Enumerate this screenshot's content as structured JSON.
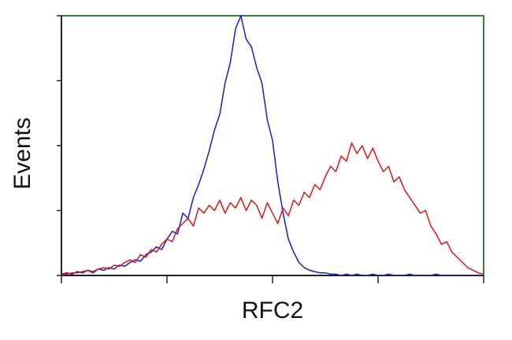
{
  "chart_data": {
    "type": "line",
    "xlabel": "RFC2",
    "ylabel": "Events",
    "x": [
      1,
      1.122,
      1.259,
      1.413,
      1.585,
      1.778,
      1.995,
      2.239,
      2.512,
      2.818,
      3.162,
      3.548,
      3.981,
      4.467,
      5.012,
      5.623,
      6.31,
      7.079,
      7.943,
      8.913,
      10,
      11.22,
      12.59,
      14.13,
      15.85,
      17.78,
      19.95,
      22.39,
      25.12,
      28.18,
      31.62,
      35.48,
      39.81,
      44.67,
      50.12,
      56.23,
      63.1,
      70.79,
      79.43,
      89.13,
      100,
      112.2,
      125.9,
      141.3,
      158.5,
      177.8,
      199.5,
      223.9,
      251.2,
      281.8,
      316.2,
      354.8,
      398.1,
      446.7,
      501.2,
      562.3,
      631,
      707.9,
      794.3,
      891.3,
      1000,
      1122,
      1259,
      1413,
      1585,
      1778,
      1995,
      2239,
      2512,
      2818,
      3162,
      3548,
      3981,
      4467,
      5012,
      5623,
      6310,
      7079,
      7943,
      8913,
      10000
    ],
    "series": [
      {
        "color": "#1a1ad6",
        "values": [
          0.5,
          1,
          0.5,
          1.5,
          1,
          2,
          1,
          2.5,
          2,
          3,
          2.5,
          4,
          3.5,
          5,
          6,
          5.5,
          8,
          9,
          11,
          10,
          14,
          17,
          16,
          24,
          22,
          30,
          35,
          41,
          48,
          56,
          62,
          74,
          82,
          95,
          100,
          91,
          88,
          80,
          74,
          60,
          52,
          36,
          24,
          14,
          9,
          5,
          3,
          2,
          1.5,
          1,
          1,
          0.5,
          0.5,
          0,
          0.5,
          0,
          0.5,
          0,
          0,
          0.5,
          0,
          0,
          0.5,
          0,
          0,
          0,
          0.5,
          0,
          0,
          0,
          0,
          0.5,
          0,
          0,
          0,
          0,
          0,
          0,
          0,
          0,
          0
        ]
      },
      {
        "color": "#e01515",
        "values": [
          0.5,
          0.5,
          1,
          1,
          1.5,
          2,
          1.5,
          2.5,
          3,
          2.5,
          4,
          3.5,
          5,
          6,
          5,
          8,
          7,
          10,
          9,
          12,
          14,
          13,
          18,
          20,
          22,
          19,
          26,
          24,
          27,
          25,
          29,
          24,
          28,
          26,
          30,
          25,
          29,
          27,
          22,
          28,
          24,
          20,
          26,
          23,
          29,
          27,
          32,
          30,
          35,
          33,
          38,
          42,
          40,
          46,
          44,
          51,
          47,
          50,
          45,
          49,
          44,
          40,
          42,
          36,
          38,
          33,
          30,
          27,
          24,
          25,
          19,
          16,
          12,
          13,
          9,
          7,
          5,
          3,
          2,
          1,
          0.5
        ]
      }
    ],
    "xscale": "log",
    "xlim": [
      1,
      10000
    ],
    "xticks": [
      1,
      10,
      100,
      1000,
      10000
    ],
    "ylim": [
      0,
      100
    ],
    "yticks": [
      0,
      25,
      50,
      75,
      100
    ],
    "frame_color": "#2e8b2e"
  }
}
